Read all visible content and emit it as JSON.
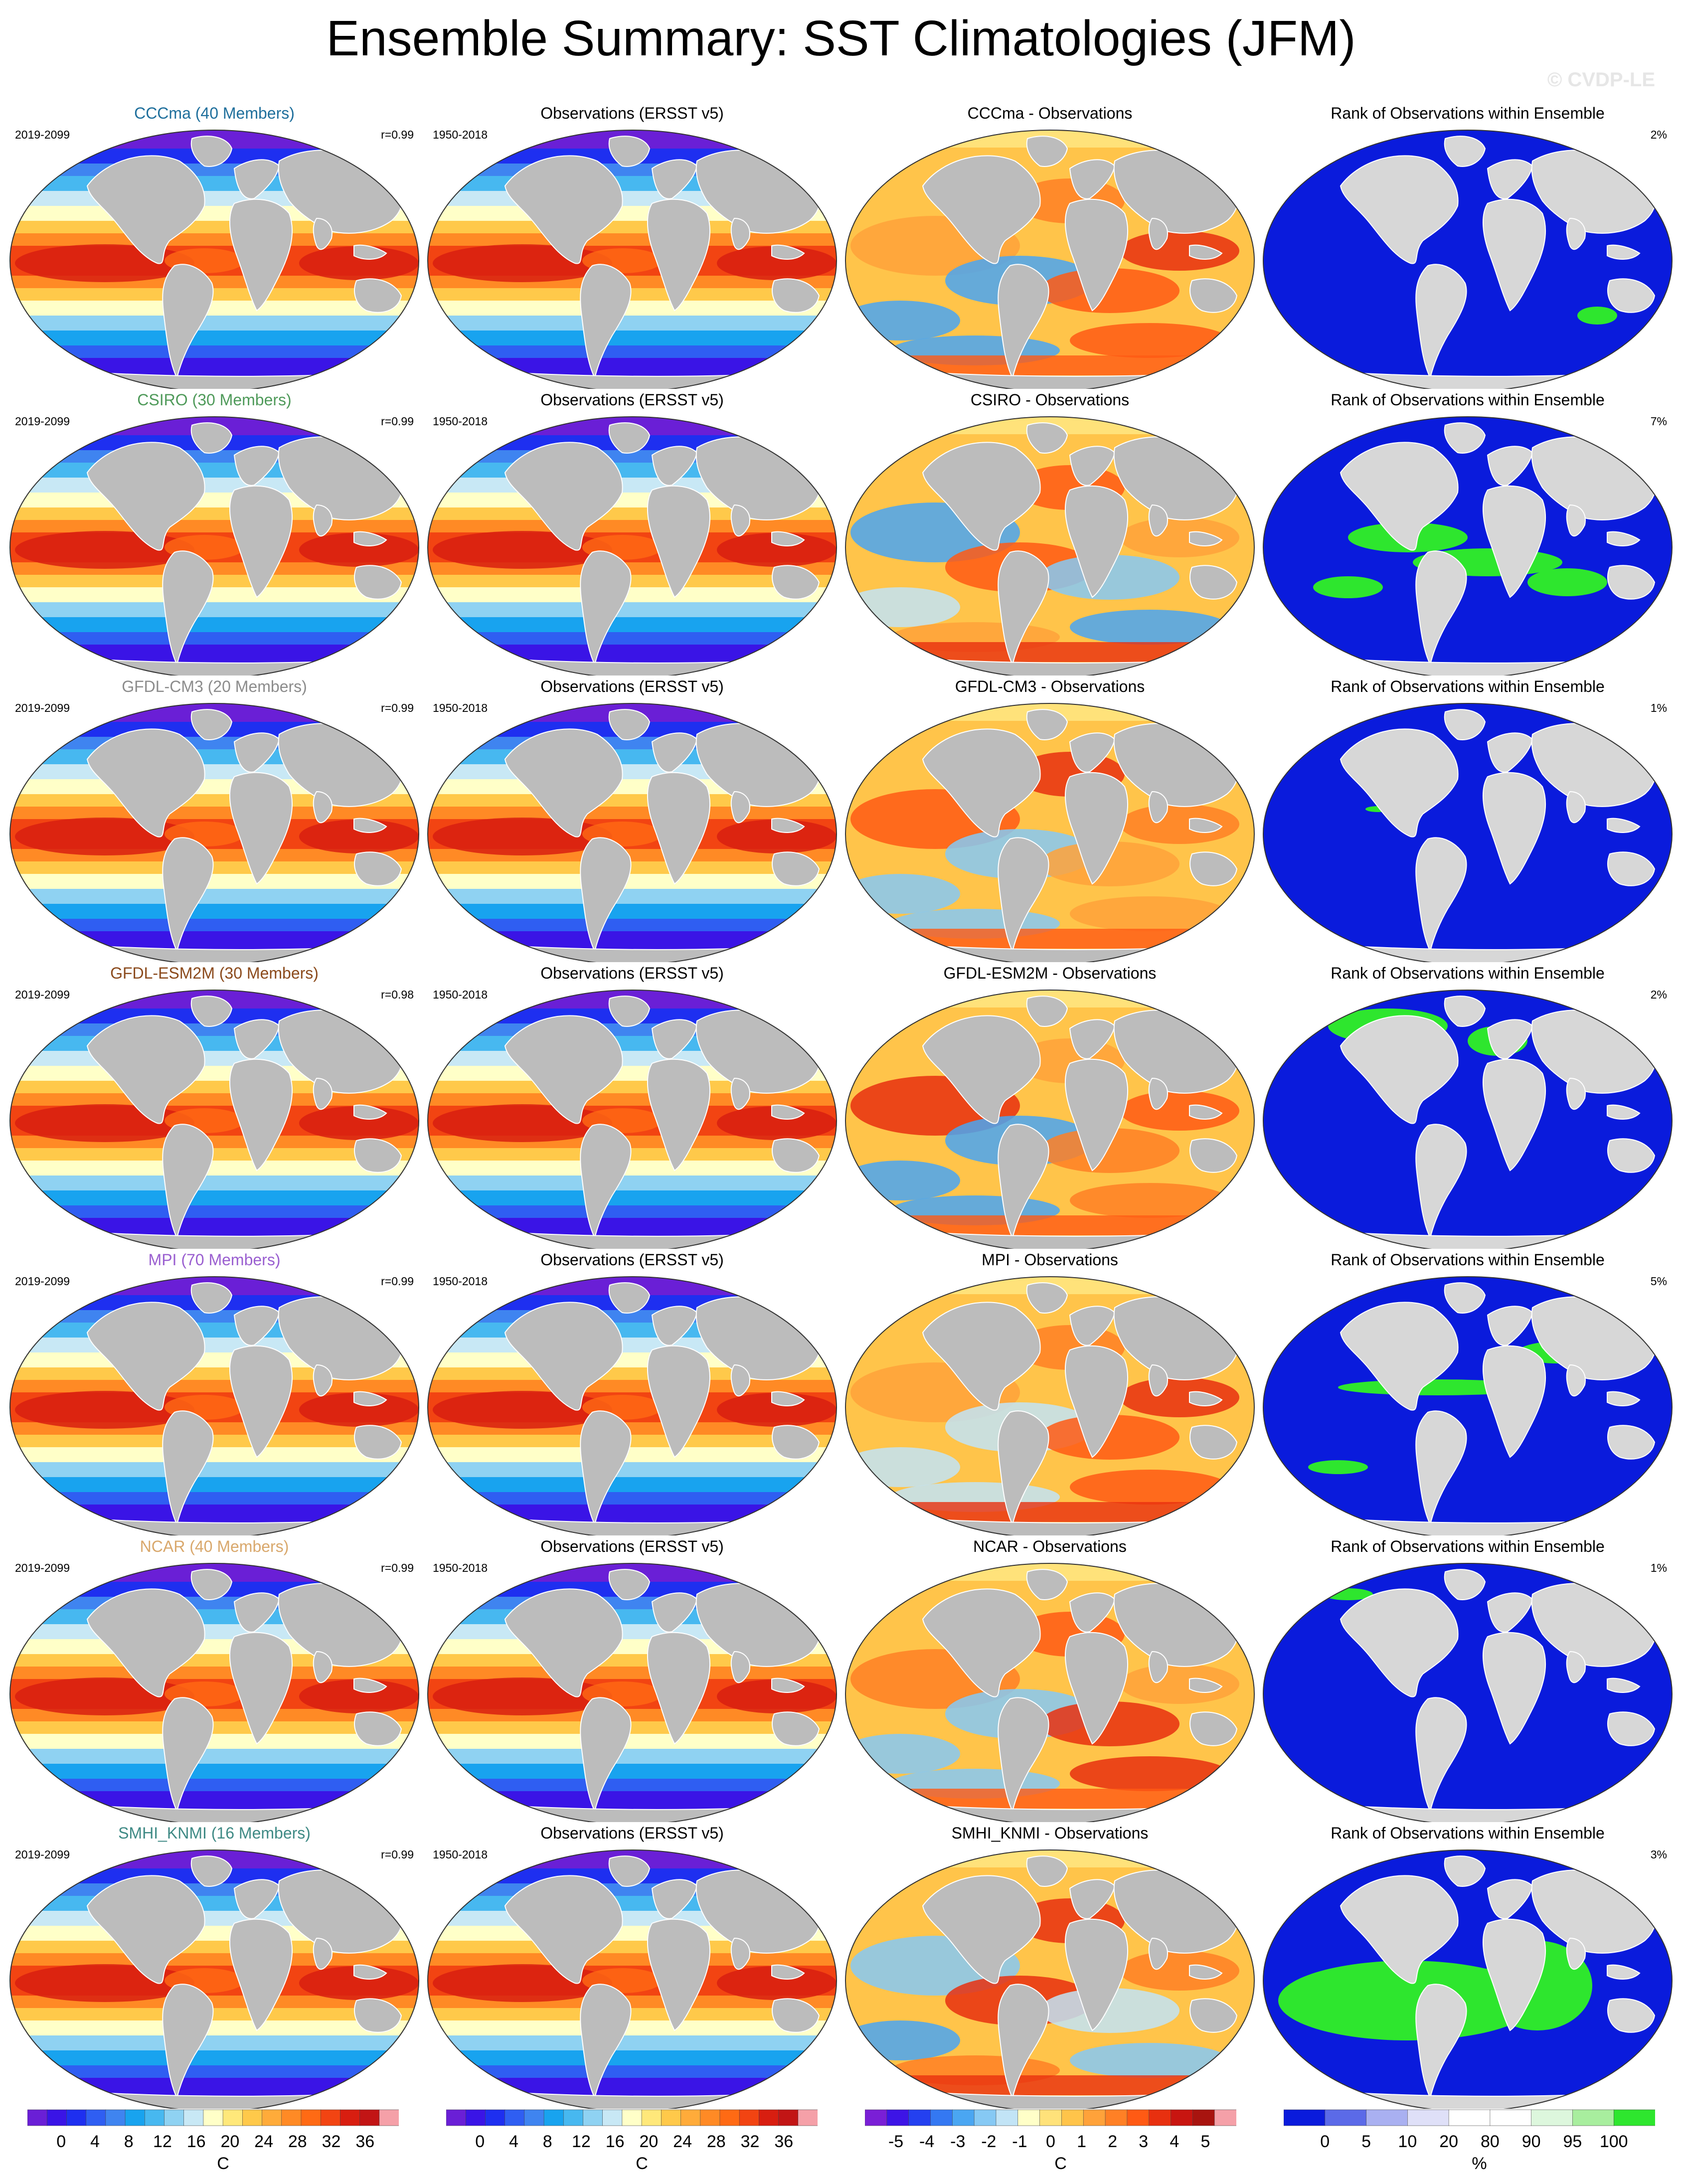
{
  "title": "Ensemble Summary: SST Climatologies (JFM)",
  "watermark": "© CVDP-LE",
  "columns": [
    "ensemble-mean",
    "observations",
    "difference",
    "rank"
  ],
  "rows": [
    {
      "model": "CCCma",
      "model_title": "CCCma (40 Members)",
      "model_title_color": "#1f6f9c",
      "period": "2019-2099",
      "correlation": "r=0.99",
      "obs_title": "Observations (ERSST v5)",
      "obs_period": "1950-2018",
      "diff_title": "CCCma - Observations",
      "rank_title": "Rank of Observations within Ensemble",
      "rank_percent": "2%"
    },
    {
      "model": "CSIRO",
      "model_title": "CSIRO (30 Members)",
      "model_title_color": "#4f9a5a",
      "period": "2019-2099",
      "correlation": "r=0.99",
      "obs_title": "Observations (ERSST v5)",
      "obs_period": "1950-2018",
      "diff_title": "CSIRO - Observations",
      "rank_title": "Rank of Observations within Ensemble",
      "rank_percent": "7%"
    },
    {
      "model": "GFDL-CM3",
      "model_title": "GFDL-CM3 (20 Members)",
      "model_title_color": "#8c8c8c",
      "period": "2019-2099",
      "correlation": "r=0.99",
      "obs_title": "Observations (ERSST v5)",
      "obs_period": "1950-2018",
      "diff_title": "GFDL-CM3 - Observations",
      "rank_title": "Rank of Observations within Ensemble",
      "rank_percent": "1%"
    },
    {
      "model": "GFDL-ESM2M",
      "model_title": "GFDL-ESM2M (30 Members)",
      "model_title_color": "#8b4a1c",
      "period": "2019-2099",
      "correlation": "r=0.98",
      "obs_title": "Observations (ERSST v5)",
      "obs_period": "1950-2018",
      "diff_title": "GFDL-ESM2M - Observations",
      "rank_title": "Rank of Observations within Ensemble",
      "rank_percent": "2%"
    },
    {
      "model": "MPI",
      "model_title": "MPI (70 Members)",
      "model_title_color": "#9a5fd0",
      "period": "2019-2099",
      "correlation": "r=0.99",
      "obs_title": "Observations (ERSST v5)",
      "obs_period": "1950-2018",
      "diff_title": "MPI - Observations",
      "rank_title": "Rank of Observations within Ensemble",
      "rank_percent": "5%"
    },
    {
      "model": "NCAR",
      "model_title": "NCAR (40 Members)",
      "model_title_color": "#d9a86c",
      "period": "2019-2099",
      "correlation": "r=0.99",
      "obs_title": "Observations (ERSST v5)",
      "obs_period": "1950-2018",
      "diff_title": "NCAR - Observations",
      "rank_title": "Rank of Observations within Ensemble",
      "rank_percent": "1%"
    },
    {
      "model": "SMHI_KNMI",
      "model_title": "SMHI_KNMI (16 Members)",
      "model_title_color": "#3f8a85",
      "period": "2019-2099",
      "correlation": "r=0.99",
      "obs_title": "Observations (ERSST v5)",
      "obs_period": "1950-2018",
      "diff_title": "SMHI_KNMI - Observations",
      "rank_title": "Rank of Observations within Ensemble",
      "rank_percent": "3%"
    }
  ],
  "colorbars": [
    {
      "name": "sst",
      "ticks": [
        "0",
        "4",
        "8",
        "12",
        "16",
        "20",
        "24",
        "28",
        "32",
        "36"
      ],
      "unit": "C",
      "colors": [
        "#6a1fd6",
        "#3a14e6",
        "#1e2ff0",
        "#2f5ef2",
        "#3f84f0",
        "#18a3ef",
        "#47b8f0",
        "#8fd2f2",
        "#c8e8f5",
        "#ffffc8",
        "#ffe87a",
        "#ffc94a",
        "#ffab3a",
        "#ff8a25",
        "#ff6a14",
        "#f24412",
        "#d81e10",
        "#c21515",
        "#f5a0a8"
      ]
    },
    {
      "name": "sst",
      "ticks": [
        "0",
        "4",
        "8",
        "12",
        "16",
        "20",
        "24",
        "28",
        "32",
        "36"
      ],
      "unit": "C",
      "colors": [
        "#6a1fd6",
        "#3a14e6",
        "#1e2ff0",
        "#2f5ef2",
        "#3f84f0",
        "#18a3ef",
        "#47b8f0",
        "#8fd2f2",
        "#c8e8f5",
        "#ffffc8",
        "#ffe87a",
        "#ffc94a",
        "#ffab3a",
        "#ff8a25",
        "#ff6a14",
        "#f24412",
        "#d81e10",
        "#c21515",
        "#f5a0a8"
      ]
    },
    {
      "name": "difference",
      "ticks": [
        "-5",
        "-4",
        "-3",
        "-2",
        "-1",
        "0",
        "1",
        "2",
        "3",
        "4",
        "5"
      ],
      "unit": "C",
      "colors": [
        "#7a1fd6",
        "#3d14e6",
        "#2440f0",
        "#3478f2",
        "#4aa6f2",
        "#86c9f4",
        "#c2e4f6",
        "#ffffc8",
        "#ffe27a",
        "#ffc44a",
        "#ffa23a",
        "#ff8025",
        "#ff5a14",
        "#e8300f",
        "#c81510",
        "#a8140f",
        "#f5a0a8"
      ]
    },
    {
      "name": "rank",
      "ticks": [
        "0",
        "5",
        "10",
        "20",
        "80",
        "90",
        "95",
        "100"
      ],
      "unit": "%",
      "colors": [
        "#0a1bdc",
        "#5b6ae8",
        "#a9b0f1",
        "#dfe0f8",
        "#ffffff",
        "#ffffff",
        "#ddf7dd",
        "#a8ee9e",
        "#2ee62e"
      ]
    }
  ]
}
